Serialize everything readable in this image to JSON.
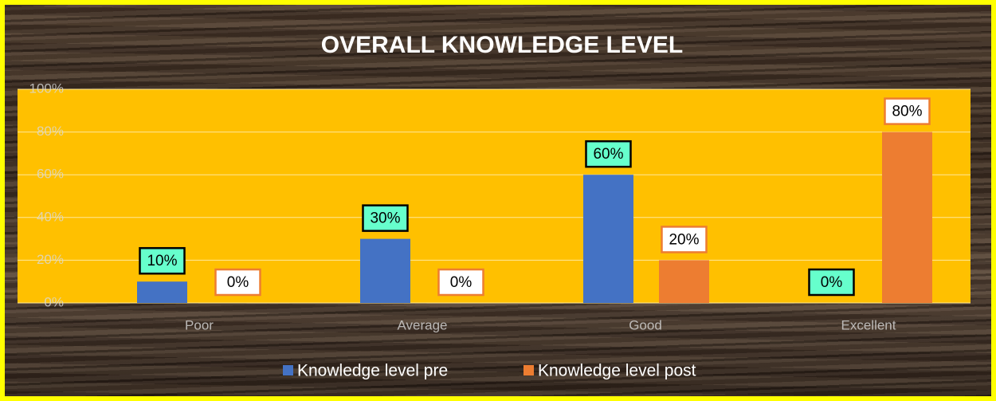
{
  "chart_data": {
    "type": "bar",
    "title": "OVERALL KNOWLEDGE LEVEL",
    "categories": [
      "Poor",
      "Average",
      "Good",
      "Excellent"
    ],
    "series": [
      {
        "name": "Knowledge level pre",
        "color": "#4472c4",
        "values": [
          10,
          30,
          60,
          0
        ],
        "value_labels": [
          "10%",
          "30%",
          "60%",
          "0%"
        ]
      },
      {
        "name": "Knowledge level post",
        "color": "#ed7d31",
        "values": [
          0,
          0,
          20,
          80
        ],
        "value_labels": [
          "0%",
          "0%",
          "20%",
          "80%"
        ]
      }
    ],
    "ylim": [
      0,
      100
    ],
    "yticks": [
      {
        "value": 0,
        "label": "0%"
      },
      {
        "value": 20,
        "label": "20%"
      },
      {
        "value": 40,
        "label": "40%"
      },
      {
        "value": 60,
        "label": "60%"
      },
      {
        "value": 80,
        "label": "80%"
      },
      {
        "value": 100,
        "label": "100%"
      }
    ],
    "grid": true,
    "legend": "bottom"
  }
}
